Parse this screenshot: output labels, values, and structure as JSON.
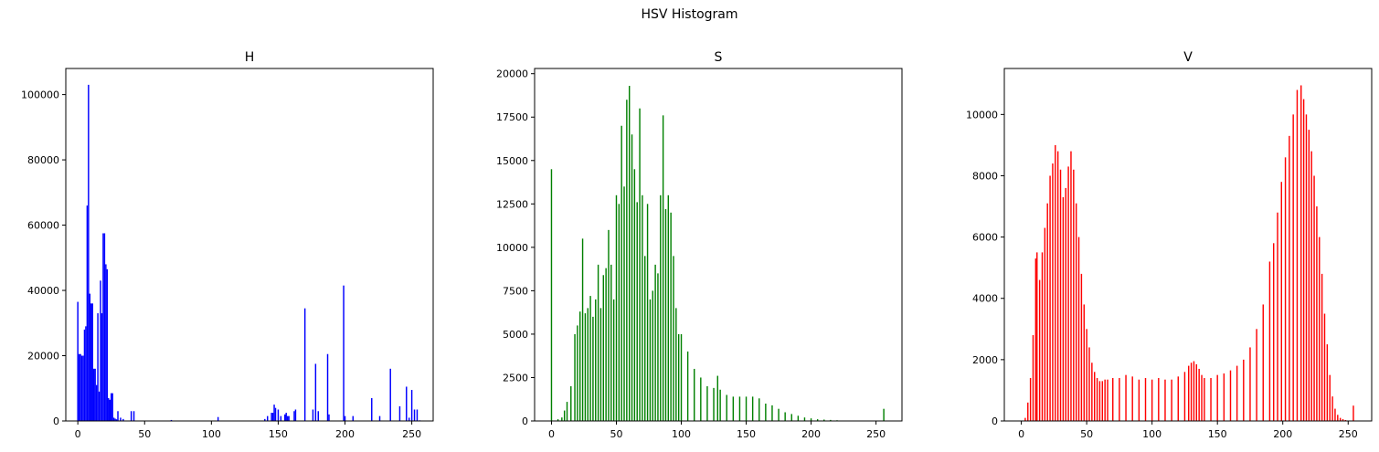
{
  "figure": {
    "title": "HSV Histogram"
  },
  "chart_data": [
    {
      "type": "bar",
      "title": "H",
      "color": "#0000ff",
      "xlim": [
        -9,
        266
      ],
      "ylim": [
        0,
        108000
      ],
      "xticks": [
        0,
        50,
        100,
        150,
        200,
        250
      ],
      "yticks": [
        0,
        20000,
        40000,
        60000,
        80000,
        100000
      ],
      "xlabel": "",
      "ylabel": "",
      "x": [
        0,
        1,
        2,
        3,
        4,
        5,
        6,
        7,
        8,
        9,
        10,
        11,
        12,
        13,
        14,
        15,
        16,
        17,
        18,
        19,
        20,
        21,
        22,
        23,
        24,
        25,
        26,
        27,
        28,
        29,
        30,
        32,
        34,
        40,
        42,
        70,
        105,
        140,
        142,
        145,
        146,
        147,
        148,
        150,
        152,
        155,
        156,
        157,
        158,
        162,
        163,
        170,
        176,
        178,
        180,
        187,
        188,
        199,
        200,
        206,
        220,
        226,
        234,
        241,
        246,
        248,
        250,
        252,
        254,
        256
      ],
      "values": [
        36500,
        20500,
        20500,
        20000,
        20000,
        28000,
        29000,
        66000,
        103000,
        39000,
        36000,
        36000,
        16000,
        16000,
        11000,
        33000,
        9000,
        43000,
        33000,
        57500,
        57500,
        48000,
        46500,
        7000,
        6500,
        8500,
        8500,
        1000,
        700,
        500,
        3000,
        1000,
        600,
        3000,
        3000,
        300,
        1200,
        600,
        1500,
        2500,
        2500,
        5000,
        4000,
        3500,
        1500,
        2000,
        2500,
        1500,
        1500,
        3000,
        3500,
        34500,
        3500,
        17500,
        3000,
        20500,
        2000,
        41500,
        1500,
        1500,
        7000,
        1500,
        16000,
        4500,
        10500,
        1000,
        9500,
        3500,
        3500,
        200
      ]
    },
    {
      "type": "bar",
      "title": "S",
      "color": "#008000",
      "xlim": [
        -13,
        270
      ],
      "ylim": [
        0,
        20300
      ],
      "xticks": [
        0,
        50,
        100,
        150,
        200,
        250
      ],
      "yticks": [
        0,
        2500,
        5000,
        7500,
        10000,
        12500,
        15000,
        17500,
        20000
      ],
      "xlabel": "",
      "ylabel": "",
      "x": [
        0,
        5,
        8,
        10,
        12,
        15,
        18,
        20,
        22,
        24,
        26,
        28,
        30,
        32,
        34,
        36,
        38,
        40,
        42,
        44,
        46,
        48,
        50,
        52,
        54,
        56,
        58,
        60,
        62,
        64,
        66,
        68,
        70,
        72,
        74,
        76,
        78,
        80,
        82,
        84,
        86,
        88,
        90,
        92,
        94,
        96,
        98,
        100,
        105,
        110,
        115,
        120,
        125,
        128,
        130,
        135,
        140,
        145,
        150,
        155,
        160,
        165,
        170,
        175,
        180,
        185,
        190,
        195,
        200,
        205,
        210,
        215,
        220,
        225,
        230,
        235,
        240,
        245,
        250,
        254,
        256
      ],
      "values": [
        14500,
        100,
        200,
        600,
        1100,
        2000,
        5000,
        5500,
        6300,
        10500,
        6200,
        6500,
        7200,
        6000,
        7000,
        9000,
        6500,
        8400,
        8800,
        11000,
        9000,
        7000,
        13000,
        12500,
        17000,
        13500,
        18500,
        19300,
        16500,
        14500,
        12600,
        18000,
        13000,
        9500,
        12500,
        7000,
        7500,
        9000,
        8500,
        13000,
        17600,
        12200,
        13000,
        12000,
        9500,
        6500,
        5000,
        5000,
        4000,
        3000,
        2500,
        2000,
        1900,
        2600,
        1800,
        1500,
        1400,
        1400,
        1400,
        1400,
        1300,
        1000,
        900,
        700,
        500,
        400,
        300,
        200,
        150,
        100,
        80,
        60,
        40,
        20,
        10,
        10,
        0,
        0,
        0,
        0,
        700
      ]
    },
    {
      "type": "bar",
      "title": "V",
      "color": "#ff0000",
      "xlim": [
        -13,
        268
      ],
      "ylim": [
        0,
        11500
      ],
      "xticks": [
        0,
        50,
        100,
        150,
        200,
        250
      ],
      "yticks": [
        0,
        2000,
        4000,
        6000,
        8000,
        10000
      ],
      "xlabel": "",
      "ylabel": "",
      "x": [
        0,
        3,
        5,
        7,
        9,
        11,
        12,
        14,
        16,
        18,
        20,
        22,
        24,
        26,
        28,
        30,
        32,
        34,
        36,
        38,
        40,
        42,
        44,
        46,
        48,
        50,
        52,
        54,
        56,
        58,
        60,
        62,
        64,
        66,
        70,
        75,
        80,
        85,
        90,
        95,
        100,
        105,
        110,
        115,
        120,
        125,
        128,
        130,
        132,
        134,
        136,
        138,
        140,
        145,
        150,
        155,
        160,
        165,
        170,
        175,
        180,
        185,
        190,
        193,
        196,
        199,
        202,
        205,
        208,
        211,
        214,
        216,
        218,
        220,
        222,
        224,
        226,
        228,
        230,
        232,
        234,
        236,
        238,
        240,
        242,
        244,
        246,
        248,
        250,
        252,
        254,
        256
      ],
      "values": [
        0,
        100,
        600,
        1400,
        2800,
        5300,
        5500,
        4600,
        5500,
        6300,
        7100,
        8000,
        8400,
        9000,
        8800,
        8200,
        7300,
        7600,
        8300,
        8800,
        8200,
        7100,
        6000,
        4800,
        3800,
        3000,
        2400,
        1900,
        1600,
        1400,
        1300,
        1300,
        1350,
        1350,
        1400,
        1400,
        1500,
        1450,
        1350,
        1400,
        1350,
        1400,
        1350,
        1350,
        1450,
        1600,
        1800,
        1900,
        1950,
        1850,
        1700,
        1500,
        1400,
        1400,
        1500,
        1550,
        1650,
        1800,
        2000,
        2400,
        3000,
        3800,
        5200,
        5800,
        6800,
        7800,
        8600,
        9300,
        10000,
        10800,
        10950,
        10500,
        10000,
        9500,
        8800,
        8000,
        7000,
        6000,
        4800,
        3500,
        2500,
        1500,
        800,
        400,
        200,
        100,
        60,
        30,
        10,
        0,
        500,
        0
      ]
    }
  ]
}
